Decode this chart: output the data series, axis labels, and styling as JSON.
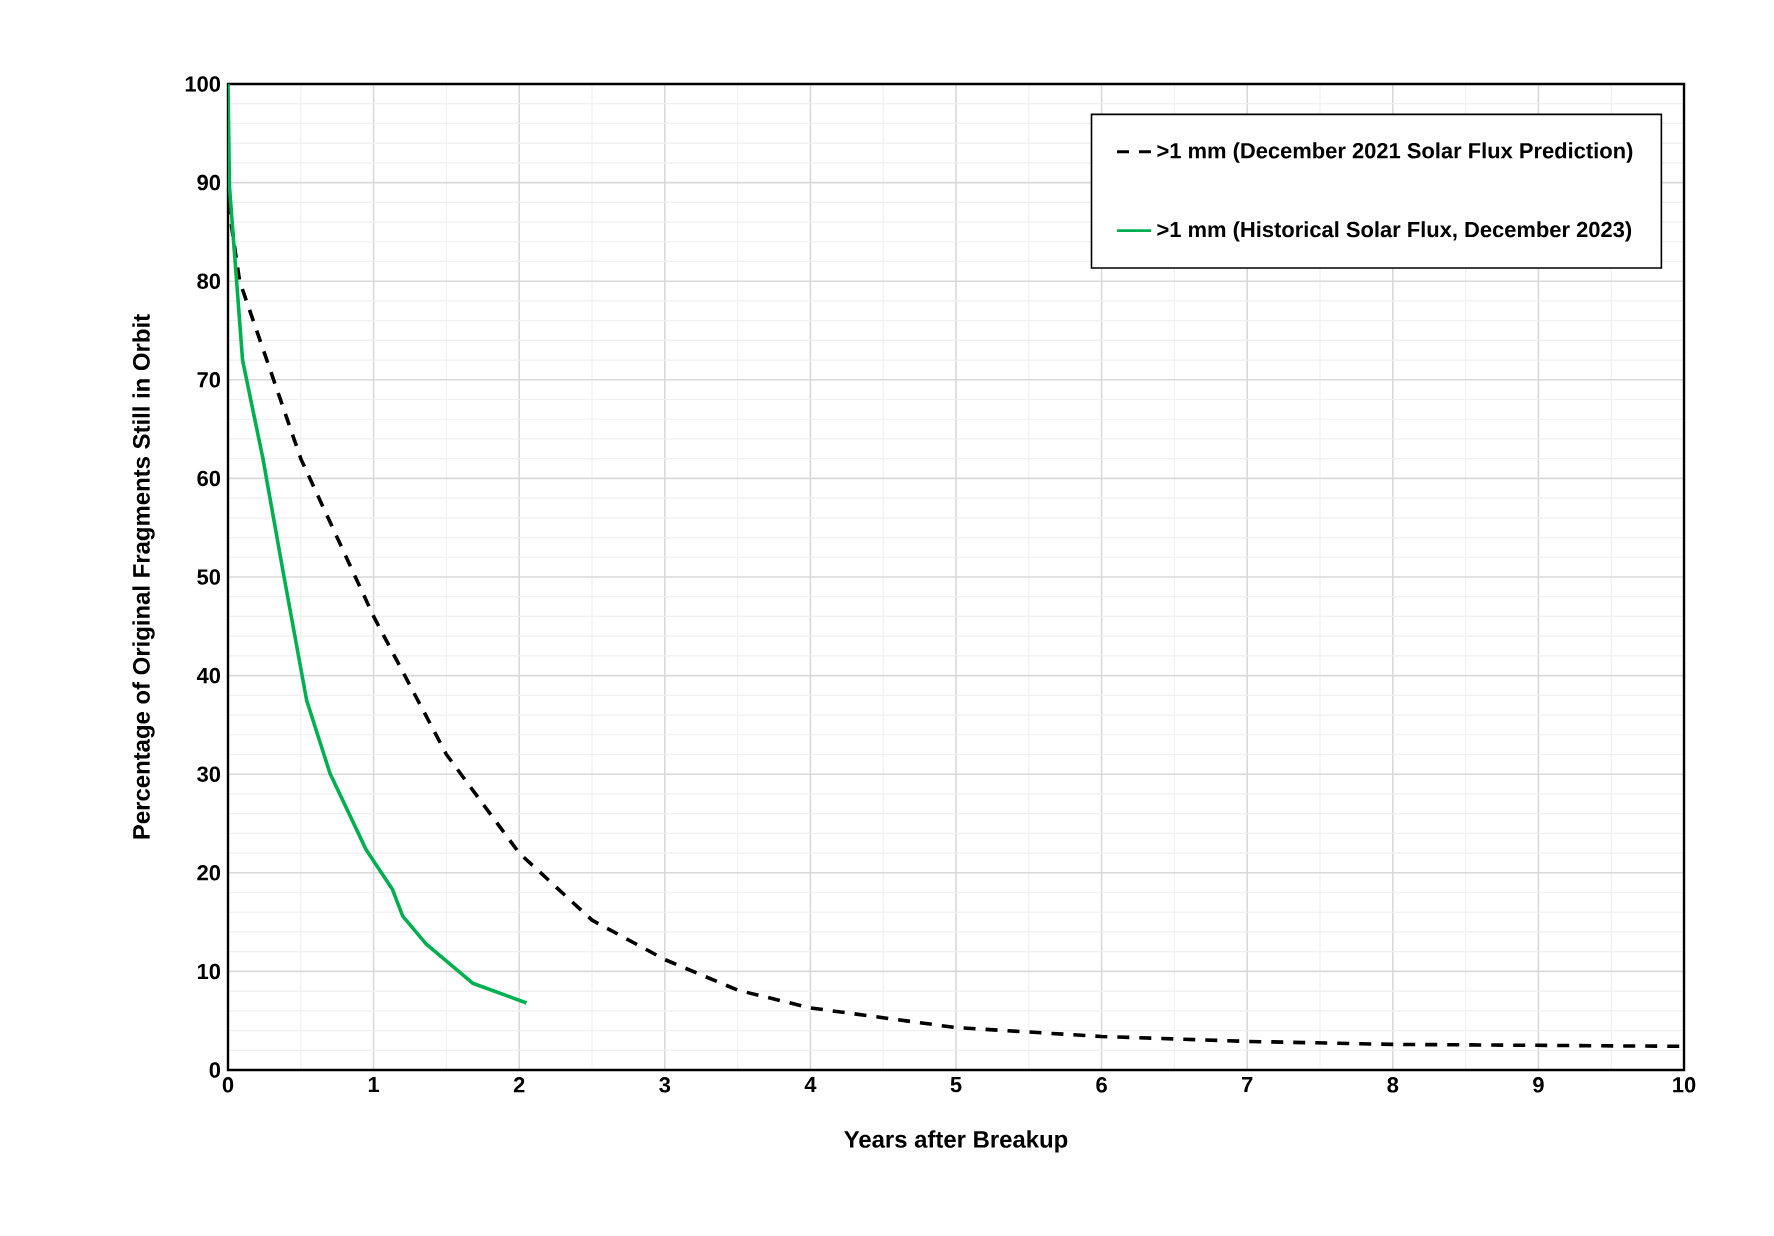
{
  "chart_data": {
    "type": "line",
    "xlabel": "Years after Breakup",
    "ylabel": "Percentage of Original Fragments Still in Orbit",
    "xlim": [
      0,
      10
    ],
    "ylim": [
      0,
      100
    ],
    "xticks": [
      0,
      1,
      2,
      3,
      4,
      5,
      6,
      7,
      8,
      9,
      10
    ],
    "yticks": [
      0,
      10,
      20,
      30,
      40,
      50,
      60,
      70,
      80,
      90,
      100
    ],
    "grid": true,
    "legend": "top right",
    "series": [
      {
        "name": ">1 mm (December 2021 Solar Flux Prediction)",
        "color": "#000000",
        "line_style": "dashed",
        "x": [
          0,
          0.08,
          0.5,
          1,
          1.5,
          2,
          2.5,
          3,
          3.5,
          4,
          5,
          6,
          7,
          8,
          9,
          10
        ],
        "values": [
          88,
          80,
          62,
          46,
          32,
          22,
          15.2,
          11.2,
          8.1,
          6.3,
          4.3,
          3.4,
          2.9,
          2.6,
          2.5,
          2.4
        ]
      },
      {
        "name": ">1 mm (Historical Solar Flux, December 2023)",
        "color": "#00b050",
        "line_style": "solid",
        "x": [
          0,
          0.01,
          0.1,
          0.24,
          0.38,
          0.54,
          0.7,
          0.95,
          1.13,
          1.2,
          1.36,
          1.68,
          2.05
        ],
        "values": [
          100,
          89.6,
          72,
          62,
          50.4,
          37.5,
          30.1,
          22.3,
          18.3,
          15.6,
          12.8,
          8.8,
          6.8
        ]
      }
    ]
  }
}
